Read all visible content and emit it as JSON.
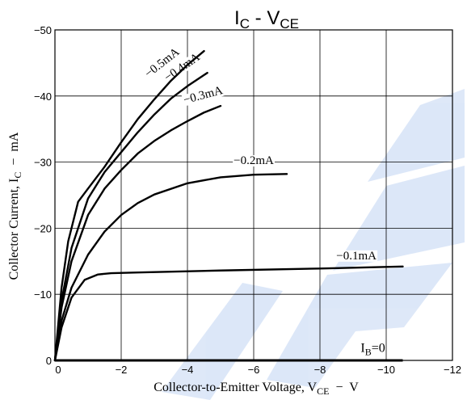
{
  "chart_data": {
    "type": "line",
    "title": {
      "main": "I",
      "sub1": "C",
      "sep": " - ",
      "main2": "V",
      "sub2": "CE"
    },
    "xlabel": {
      "text": "Collector-to-Emitter Voltage, V",
      "sub": "CE",
      "unit": "  −  V"
    },
    "ylabel": {
      "text": "Collector Current, I",
      "sub": "C",
      "unit": "  −  mA"
    },
    "xlim": [
      0,
      -12
    ],
    "ylim": [
      0,
      -50
    ],
    "x_ticks": [
      0,
      -2,
      -4,
      -6,
      -8,
      -10,
      -12
    ],
    "y_ticks": [
      0,
      -10,
      -20,
      -30,
      -40,
      -50
    ],
    "x_tick_labels": [
      "0",
      "−2",
      "−4",
      "−6",
      "−8",
      "−10",
      "−12"
    ],
    "y_tick_labels": [
      "0",
      "−10",
      "−20",
      "−30",
      "−40",
      "−50"
    ],
    "grid": true,
    "series": [
      {
        "name": "−0.1mA",
        "label_pos": [
          -9.1,
          -15.3
        ],
        "x": [
          0,
          -0.2,
          -0.5,
          -0.9,
          -1.3,
          -1.7,
          -2.5,
          -5,
          -8,
          -10.5
        ],
        "y": [
          0,
          -5,
          -9.5,
          -12.2,
          -13,
          -13.2,
          -13.3,
          -13.6,
          -13.9,
          -14.2
        ]
      },
      {
        "name": "−0.2mA",
        "label_pos": [
          -6.0,
          -29.7
        ],
        "x": [
          0,
          -0.2,
          -0.5,
          -1,
          -1.5,
          -2,
          -2.5,
          -3,
          -4,
          -5,
          -6,
          -7
        ],
        "y": [
          0,
          -6,
          -11,
          -16,
          -19.5,
          -22,
          -23.8,
          -25.1,
          -26.8,
          -27.7,
          -28.1,
          -28.2
        ]
      },
      {
        "name": "−0.3mA",
        "label_pos": [
          -4.5,
          -39.6
        ],
        "x": [
          0,
          -0.2,
          -0.5,
          -1,
          -1.5,
          -2,
          -2.5,
          -3,
          -3.5,
          -4,
          -4.5,
          -5
        ],
        "y": [
          0,
          -8,
          -15,
          -22,
          -26,
          -28.8,
          -31.3,
          -33.2,
          -34.8,
          -36.2,
          -37.5,
          -38.5
        ]
      },
      {
        "name": "−0.4mA",
        "label_pos": [
          -3.9,
          -43.9
        ],
        "x": [
          0,
          -0.2,
          -0.5,
          -1,
          -1.5,
          -2,
          -2.5,
          -3,
          -3.5,
          -4,
          -4.6
        ],
        "y": [
          0,
          -9,
          -17,
          -24.5,
          -28.5,
          -31.5,
          -34.5,
          -37.2,
          -39.6,
          -41.5,
          -43.5
        ]
      },
      {
        "name": "−0.5mA",
        "label_pos": [
          -3.3,
          -44.6
        ],
        "x": [
          0,
          -0.2,
          -0.4,
          -0.7,
          -1,
          -1.5,
          -2,
          -2.5,
          -3,
          -3.5,
          -4,
          -4.5
        ],
        "y": [
          0,
          -11,
          -18,
          -24,
          -26,
          -29.3,
          -33,
          -36.5,
          -39.5,
          -42.3,
          -44.7,
          -46.8
        ]
      }
    ],
    "baseline_label": {
      "main": "I",
      "sub": "B",
      "rest": "=0",
      "pos": [
        -9.6,
        -1.3
      ]
    },
    "baseline": {
      "x": [
        0,
        -10.5
      ],
      "y": [
        0,
        0
      ]
    }
  }
}
